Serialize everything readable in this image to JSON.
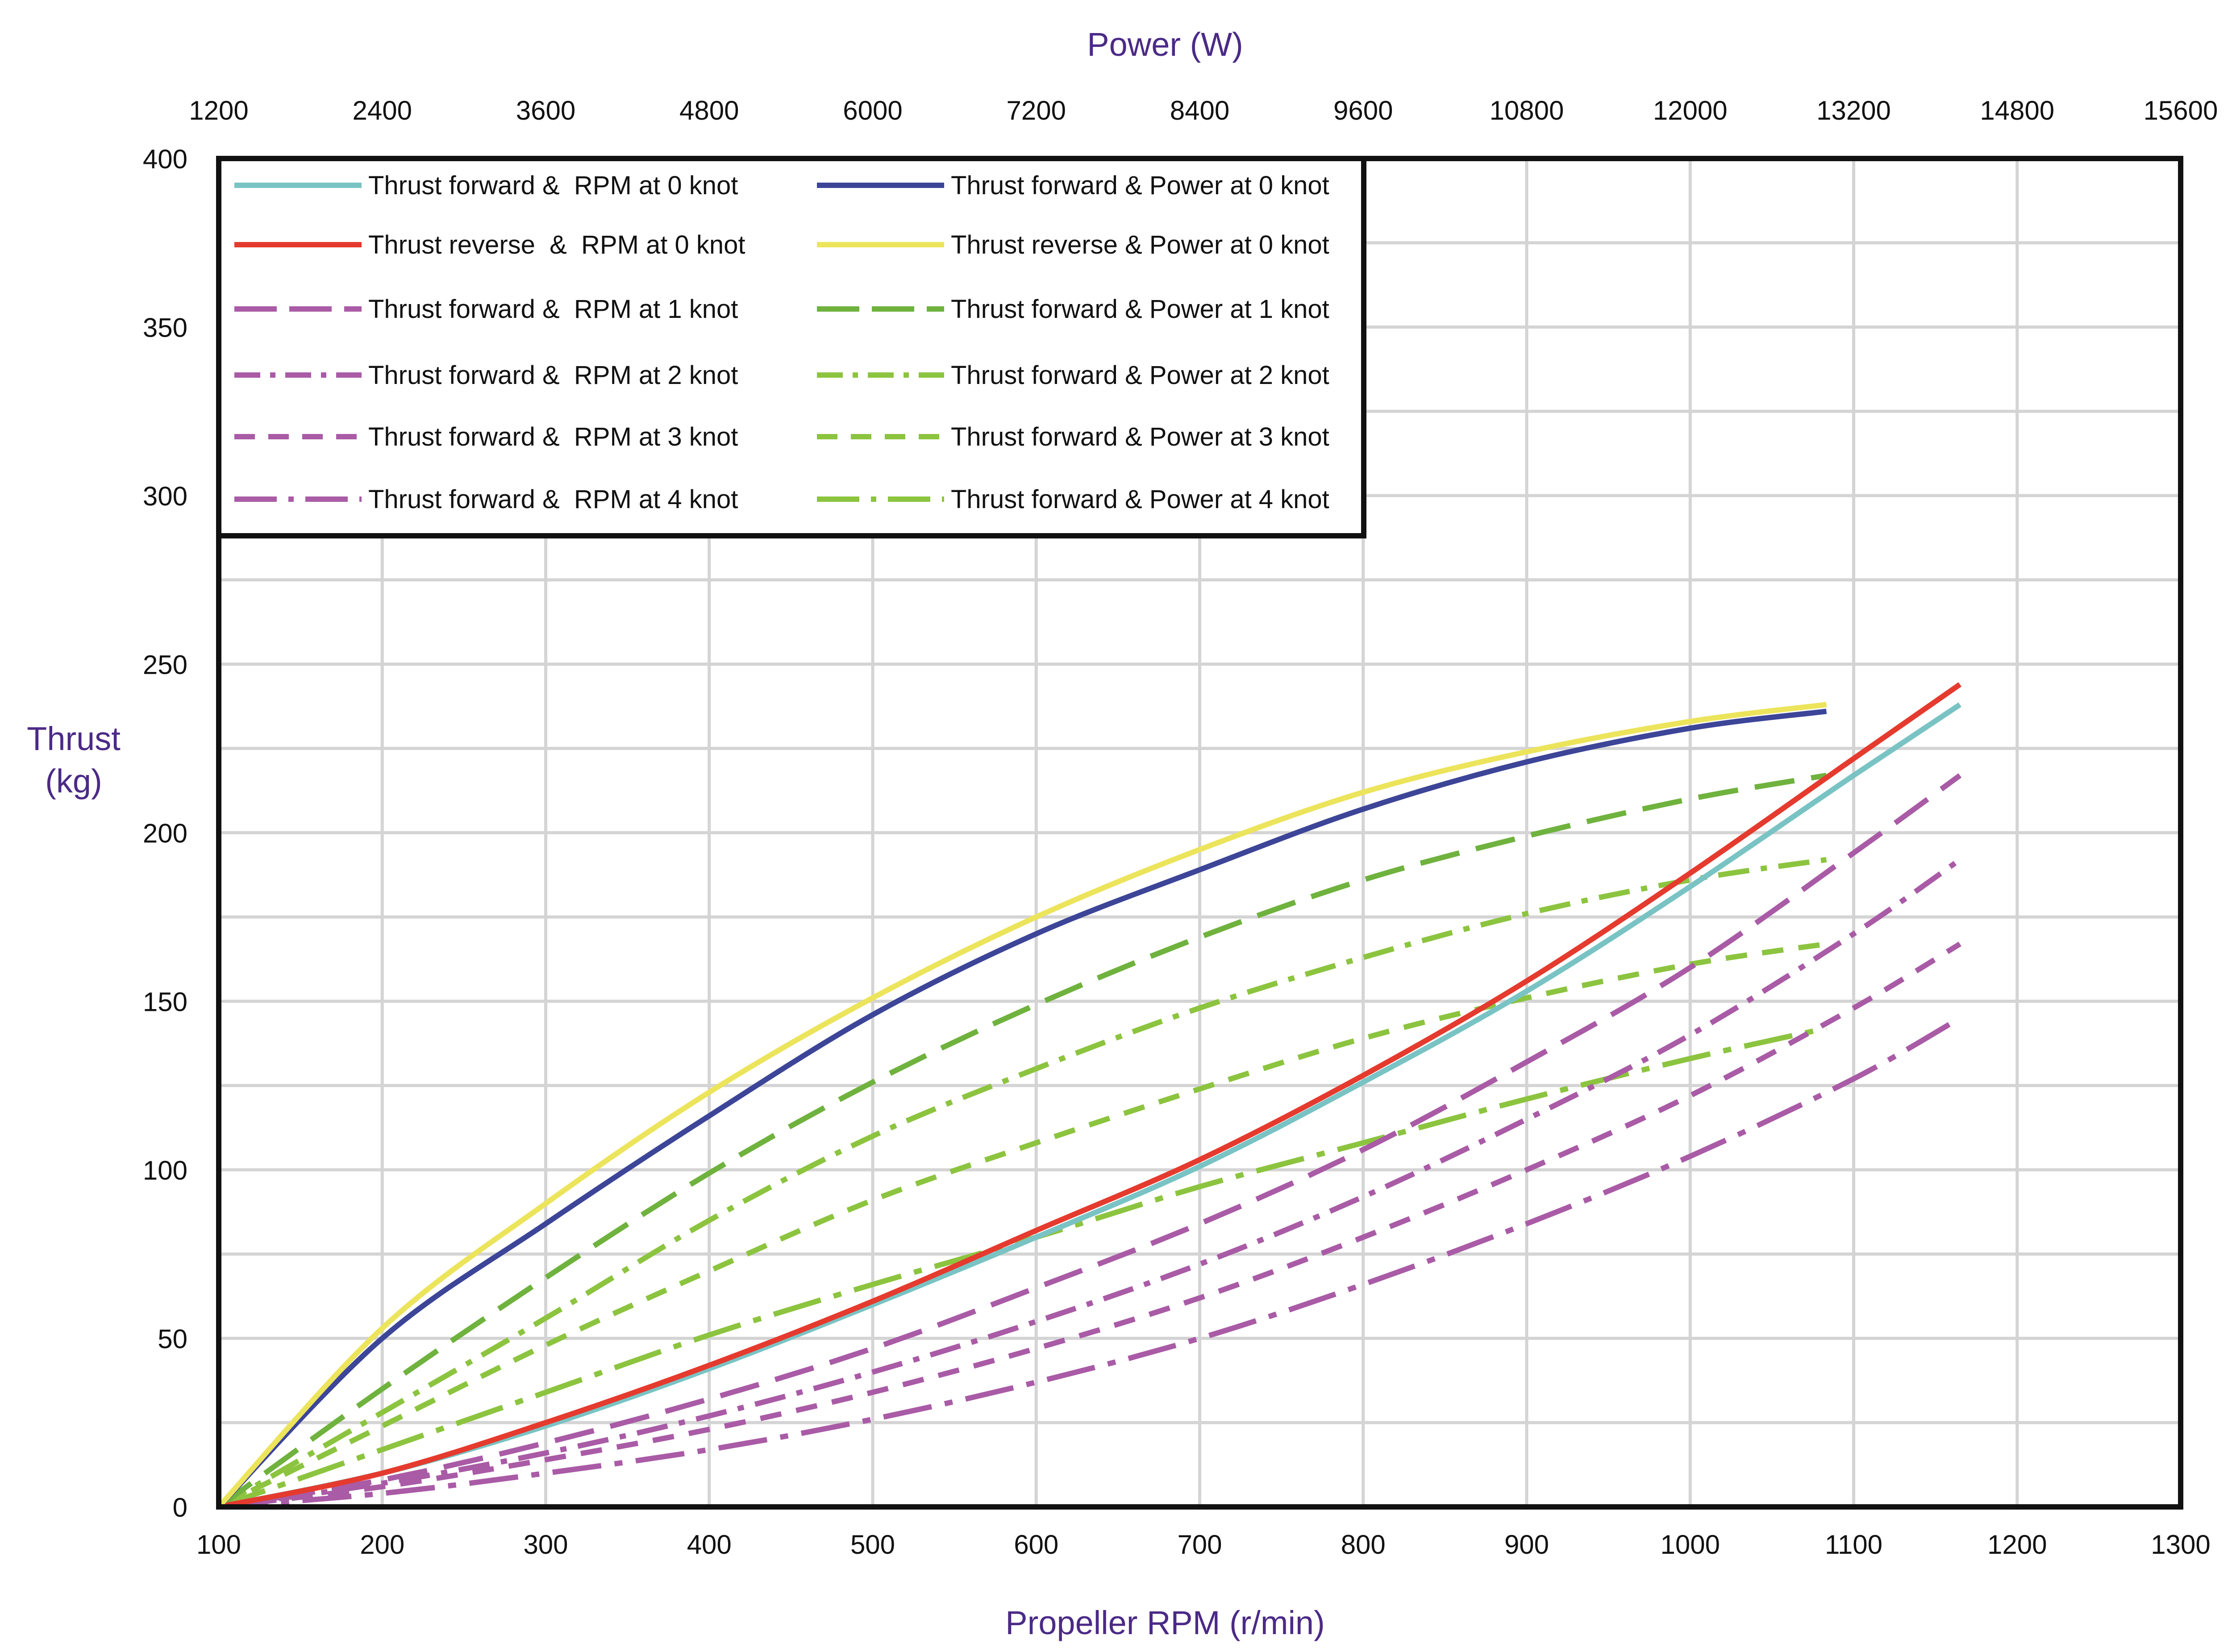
{
  "chart_data": {
    "type": "line",
    "top_axis_title": "Power (W)",
    "bottom_axis_title": "Propeller RPM (r/min)",
    "y_axis_title_lines": [
      "Thrust",
      "(kg)"
    ],
    "x_bottom": {
      "range": [
        100,
        1300
      ],
      "ticks": [
        "100",
        "200",
        "300",
        "400",
        "500",
        "600",
        "700",
        "800",
        "900",
        "1000",
        "1100",
        "1200",
        "1300"
      ]
    },
    "x_top": {
      "range": [
        1200,
        15600
      ],
      "ticks": [
        "1200",
        "2400",
        "3600",
        "4800",
        "6000",
        "7200",
        "8400",
        "9600",
        "10800",
        "12000",
        "13200",
        "14800",
        "15600"
      ]
    },
    "y": {
      "range": [
        0,
        400
      ],
      "ticks": [
        "0",
        "50",
        "100",
        "150",
        "200",
        "250",
        "300",
        "350",
        "400"
      ]
    },
    "grid": true,
    "legend_position": "top-left",
    "series": [
      {
        "name": "Thrust forward &  RPM at 0 knot",
        "axis": "rpm",
        "color": "#79c3c4",
        "dash": "solid",
        "x": [
          100,
          200,
          300,
          400,
          500,
          600,
          700,
          800,
          900,
          1000,
          1100,
          1165
        ],
        "y": [
          0,
          10,
          24,
          41,
          60,
          80,
          101,
          126,
          153,
          184,
          217,
          238
        ]
      },
      {
        "name": "Thrust reverse  &  RPM at 0 knot",
        "axis": "rpm",
        "color": "#e53a2e",
        "dash": "solid",
        "x": [
          100,
          200,
          300,
          400,
          500,
          600,
          700,
          800,
          900,
          1000,
          1100,
          1165
        ],
        "y": [
          0,
          10,
          25,
          42,
          61,
          82,
          103,
          128,
          156,
          188,
          222,
          244
        ]
      },
      {
        "name": "Thrust forward &  RPM at 1 knot",
        "axis": "rpm",
        "color": "#a95ba6",
        "dash": "long",
        "x": [
          100,
          200,
          300,
          400,
          500,
          600,
          700,
          800,
          900,
          1000,
          1100,
          1165
        ],
        "y": [
          0,
          8,
          19,
          32,
          47,
          65,
          84,
          106,
          132,
          160,
          194,
          217
        ]
      },
      {
        "name": "Thrust forward &  RPM at 2 knot",
        "axis": "rpm",
        "color": "#a95ba6",
        "dash": "dashdot",
        "x": [
          100,
          200,
          300,
          400,
          500,
          600,
          700,
          800,
          900,
          1000,
          1100,
          1165
        ],
        "y": [
          0,
          7,
          16,
          27,
          40,
          55,
          72,
          92,
          115,
          140,
          170,
          192
        ]
      },
      {
        "name": "Thrust forward &  RPM at 3 knot",
        "axis": "rpm",
        "color": "#a95ba6",
        "dash": "short",
        "x": [
          100,
          200,
          300,
          400,
          500,
          600,
          700,
          800,
          900,
          1000,
          1100,
          1165
        ],
        "y": [
          0,
          6,
          14,
          23,
          34,
          47,
          62,
          80,
          100,
          122,
          148,
          167
        ]
      },
      {
        "name": "Thrust forward &  RPM at 4 knot",
        "axis": "rpm",
        "color": "#a95ba6",
        "dash": "longdot",
        "x": [
          100,
          200,
          300,
          400,
          500,
          600,
          700,
          800,
          900,
          1000,
          1100,
          1165
        ],
        "y": [
          0,
          4,
          10,
          17,
          26,
          37,
          50,
          66,
          84,
          104,
          127,
          145
        ]
      },
      {
        "name": "Thrust forward & Power at 0 knot",
        "axis": "power",
        "color": "#3c4597",
        "dash": "solid",
        "x": [
          1200,
          2400,
          3600,
          4800,
          6000,
          7200,
          8400,
          9600,
          10800,
          12000,
          13000
        ],
        "y": [
          0,
          50,
          84,
          116,
          146,
          170,
          189,
          207,
          221,
          231,
          236
        ]
      },
      {
        "name": "Thrust reverse & Power at 0 knot",
        "axis": "power",
        "color": "#ece45b",
        "dash": "solid",
        "x": [
          1200,
          2400,
          3600,
          4800,
          6000,
          7200,
          8400,
          9600,
          10800,
          12000,
          13000
        ],
        "y": [
          0,
          53,
          90,
          123,
          151,
          175,
          195,
          212,
          224,
          233,
          238
        ]
      },
      {
        "name": "Thrust forward & Power at 1 knot",
        "axis": "power",
        "color": "#6fb23e",
        "dash": "long",
        "x": [
          1200,
          2400,
          3600,
          4800,
          6000,
          7200,
          8400,
          9600,
          10800,
          12000,
          13000
        ],
        "y": [
          0,
          35,
          68,
          99,
          126,
          149,
          169,
          186,
          199,
          210,
          217
        ]
      },
      {
        "name": "Thrust forward & Power at 2 knot",
        "axis": "power",
        "color": "#8cc43f",
        "dash": "dashdot",
        "x": [
          1200,
          2400,
          3600,
          4800,
          6000,
          7200,
          8400,
          9600,
          10800,
          12000,
          13000
        ],
        "y": [
          0,
          28,
          56,
          85,
          110,
          130,
          148,
          163,
          176,
          186,
          192
        ]
      },
      {
        "name": "Thrust forward & Power at 3 knot",
        "axis": "power",
        "color": "#8cc43f",
        "dash": "short",
        "x": [
          1200,
          2400,
          3600,
          4800,
          6000,
          7200,
          8400,
          9600,
          10800,
          12000,
          13000
        ],
        "y": [
          0,
          24,
          48,
          70,
          91,
          108,
          124,
          139,
          151,
          161,
          167
        ]
      },
      {
        "name": "Thrust forward & Power at 4 knot",
        "axis": "power",
        "color": "#8cc43f",
        "dash": "longdot",
        "x": [
          1200,
          2400,
          3600,
          4800,
          6000,
          7200,
          8400,
          9600,
          10800,
          12000,
          13000
        ],
        "y": [
          0,
          17,
          34,
          51,
          66,
          80,
          95,
          108,
          121,
          133,
          142
        ]
      }
    ]
  }
}
